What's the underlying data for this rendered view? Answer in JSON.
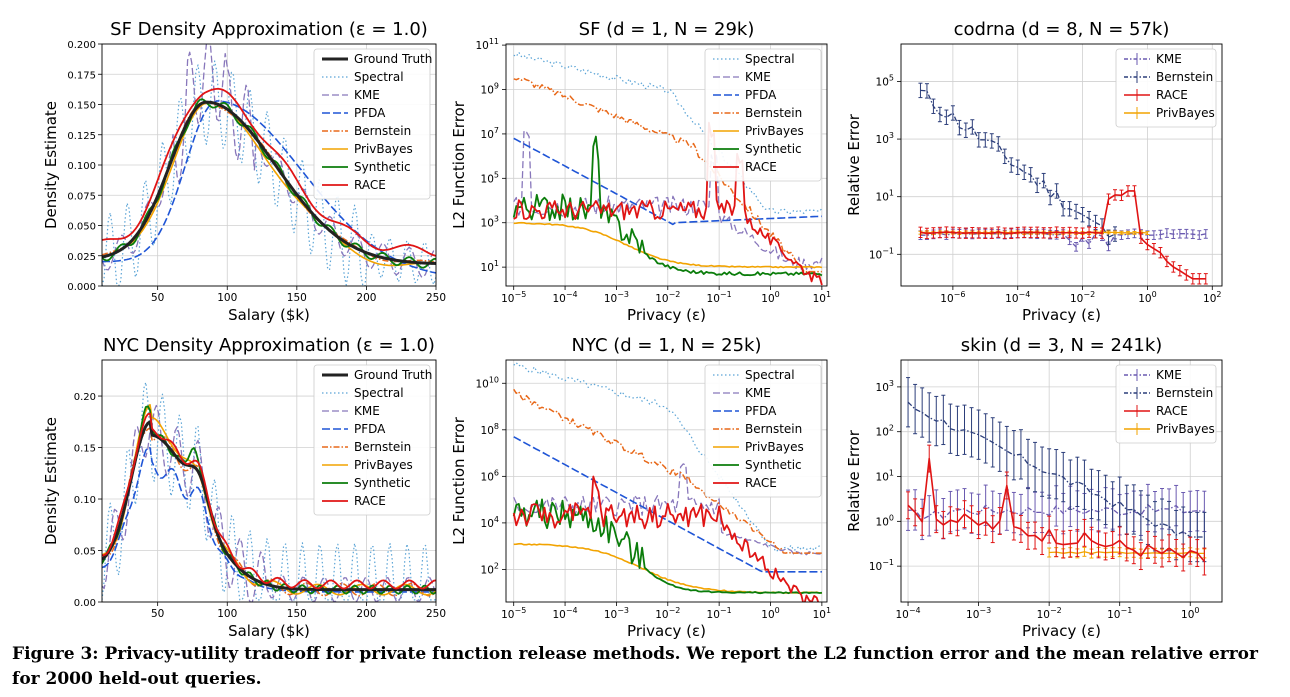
{
  "caption": "Figure 3: Privacy-utility tradeoff for private function release methods. We report the L2 function error and the mean relative error for 2000 held-out queries.",
  "colors": {
    "Ground Truth": "#222222",
    "Spectral": "#5ba4d6",
    "KME": "#8877bb",
    "PFDA": "#1f55d6",
    "Bernstein": "#e8691a",
    "PrivBayes": "#f2a300",
    "Synthetic": "#0b7d0b",
    "RACE": "#e01414",
    "KME_rel": "#6a5ab0",
    "Bernstein_rel": "#2c3e7a"
  },
  "chart_data": [
    {
      "type": "line",
      "title": "SF Density Approximation (ε = 1.0)",
      "xlabel": "Salary ($k)",
      "ylabel": "Density Estimate",
      "xlim": [
        10,
        250
      ],
      "ylim": [
        0,
        0.2
      ],
      "xticks": [
        50,
        100,
        150,
        200,
        250
      ],
      "yticks": [
        0.0,
        0.025,
        0.05,
        0.075,
        0.1,
        0.125,
        0.15,
        0.175,
        0.2
      ],
      "ytick_labels": [
        "0.000",
        "0.025",
        "0.050",
        "0.075",
        "0.100",
        "0.125",
        "0.150",
        "0.175",
        "0.200"
      ],
      "legend": [
        "Ground Truth",
        "Spectral",
        "KME",
        "PFDA",
        "Bernstein",
        "PrivBayes",
        "Synthetic",
        "RACE"
      ],
      "legend_loc": "top-right",
      "grid": true
    },
    {
      "type": "line",
      "title": "SF (d = 1, N = 29k)",
      "xlabel": "Privacy (ε)",
      "ylabel": "L2 Function Error",
      "xscale": "log",
      "yscale": "log",
      "xlim": [
        -5.15,
        1.1
      ],
      "ylim": [
        0.15,
        11.05
      ],
      "xtick_exps": [
        -5,
        -4,
        -3,
        -2,
        -1,
        0,
        1
      ],
      "ytick_exps": [
        1,
        3,
        5,
        7,
        9,
        11
      ],
      "legend": [
        "Spectral",
        "KME",
        "PFDA",
        "Bernstein",
        "PrivBayes",
        "Synthetic",
        "RACE"
      ],
      "legend_loc": "top-right",
      "grid": true
    },
    {
      "type": "line",
      "title": "codrna (d = 8, N = 57k)",
      "xlabel": "Privacy (ε)",
      "ylabel": "Relative Error",
      "xscale": "log",
      "yscale": "log",
      "xlim": [
        -7.6,
        2.3
      ],
      "ylim": [
        -2.1,
        6.3
      ],
      "xtick_exps": [
        -6,
        -4,
        -2,
        0,
        2
      ],
      "ytick_exps": [
        -1,
        1,
        3,
        5
      ],
      "legend": [
        "KME",
        "Bernstein",
        "RACE",
        "PrivBayes"
      ],
      "legend_loc": "top-right",
      "grid": true
    },
    {
      "type": "line",
      "title": "NYC Density Approximation (ε = 1.0)",
      "xlabel": "Salary ($k)",
      "ylabel": "Density Estimate",
      "xlim": [
        10,
        250
      ],
      "ylim": [
        0,
        0.235
      ],
      "xticks": [
        50,
        100,
        150,
        200,
        250
      ],
      "yticks": [
        0.0,
        0.05,
        0.1,
        0.15,
        0.2
      ],
      "ytick_labels": [
        "0.00",
        "0.05",
        "0.10",
        "0.15",
        "0.20"
      ],
      "legend": [
        "Ground Truth",
        "Spectral",
        "KME",
        "PFDA",
        "Bernstein",
        "PrivBayes",
        "Synthetic",
        "RACE"
      ],
      "legend_loc": "top-right",
      "grid": true
    },
    {
      "type": "line",
      "title": "NYC (d = 1, N = 25k)",
      "xlabel": "Privacy (ε)",
      "ylabel": "L2 Function Error",
      "xscale": "log",
      "yscale": "log",
      "xlim": [
        -5.15,
        1.1
      ],
      "ylim": [
        0.6,
        11.0
      ],
      "xtick_exps": [
        -5,
        -4,
        -3,
        -2,
        -1,
        0,
        1
      ],
      "ytick_exps": [
        2,
        4,
        6,
        8,
        10
      ],
      "legend": [
        "Spectral",
        "KME",
        "PFDA",
        "Bernstein",
        "PrivBayes",
        "Synthetic",
        "RACE"
      ],
      "legend_loc": "top-right",
      "grid": true
    },
    {
      "type": "line",
      "title": "skin (d = 3, N = 241k)",
      "xlabel": "Privacy (ε)",
      "ylabel": "Relative Error",
      "xscale": "log",
      "yscale": "log",
      "xlim": [
        -4.1,
        0.45
      ],
      "ylim": [
        -1.8,
        3.6
      ],
      "xtick_exps": [
        -4,
        -3,
        -2,
        -1,
        0
      ],
      "ytick_exps": [
        -1,
        0,
        1,
        2,
        3
      ],
      "legend": [
        "KME",
        "Bernstein",
        "RACE",
        "PrivBayes"
      ],
      "legend_loc": "top-right",
      "grid": true
    }
  ]
}
